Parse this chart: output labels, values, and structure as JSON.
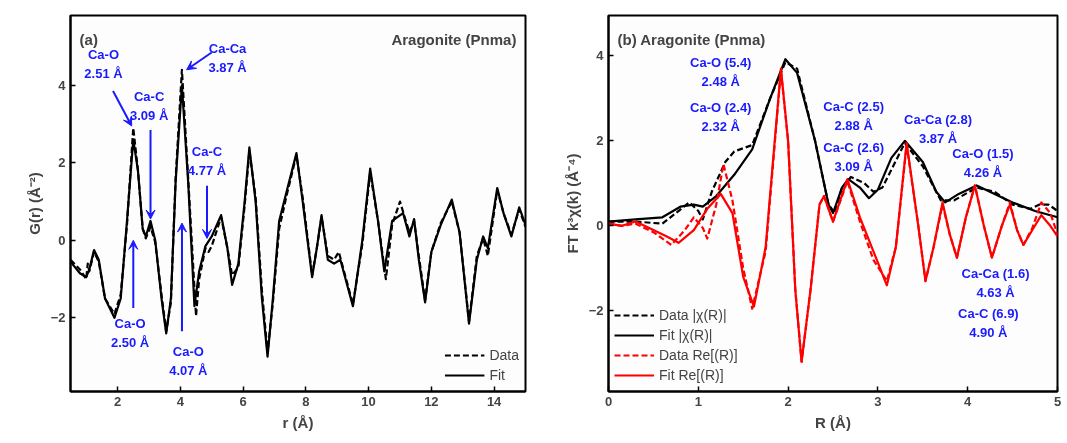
{
  "chart_data": [
    {
      "type": "line",
      "title": "(a)",
      "subtitle": "Aragonite (Pnma)",
      "xlabel": "r (Å)",
      "ylabel": "G(r) (Å⁻²)",
      "xlim": [
        0.5,
        15
      ],
      "ylim": [
        -3.9,
        5.8
      ],
      "xticks": [
        2,
        4,
        6,
        8,
        10,
        12,
        14
      ],
      "yticks": [
        -2,
        0,
        2,
        4
      ],
      "grid": false,
      "legend": "bottom right",
      "series": [
        {
          "name": "Data",
          "color": "#000000",
          "line_style": "dashed",
          "x": [
            0.5,
            0.8,
            1.0,
            1.05,
            1.1,
            1.25,
            1.4,
            1.6,
            1.9,
            2.1,
            2.3,
            2.5,
            2.65,
            2.8,
            2.9,
            3.05,
            3.2,
            3.4,
            3.55,
            3.7,
            3.85,
            4.05,
            4.25,
            4.5,
            4.6,
            4.8,
            4.9,
            5.0,
            5.3,
            5.5,
            5.65,
            5.85,
            6.05,
            6.2,
            6.4,
            6.6,
            6.78,
            6.95,
            7.15,
            7.4,
            7.7,
            7.9,
            8.2,
            8.35,
            8.5,
            8.7,
            8.9,
            9.05,
            9.15,
            9.5,
            9.8,
            10.05,
            10.3,
            10.55,
            10.75,
            11.0,
            11.3,
            11.45,
            11.6,
            11.8,
            12.0,
            12.3,
            12.65,
            12.9,
            13.2,
            13.45,
            13.65,
            13.8,
            14.1,
            14.3,
            14.55,
            14.8,
            15.0
          ],
          "values": [
            -0.5,
            -0.75,
            -1.0,
            -0.6,
            -0.8,
            -0.3,
            -0.55,
            -1.5,
            -1.9,
            -1.4,
            0.4,
            2.9,
            1.8,
            0.3,
            0.05,
            0.35,
            -0.05,
            -1.4,
            -2.35,
            -1.6,
            1.6,
            4.4,
            1.6,
            -1.95,
            -1.0,
            -0.2,
            -0.3,
            -0.15,
            0.6,
            -0.2,
            -0.9,
            -0.7,
            0.9,
            2.3,
            1.1,
            -1.3,
            -2.9,
            -1.6,
            0.3,
            1.2,
            2.2,
            1.1,
            -0.9,
            -0.2,
            0.6,
            -0.4,
            -0.5,
            -0.3,
            -0.6,
            -1.65,
            -0.1,
            1.75,
            0.5,
            -1.0,
            0.4,
            1.0,
            0.2,
            0.5,
            -0.4,
            -1.55,
            -0.3,
            0.45,
            1.0,
            0.2,
            -2.1,
            -0.4,
            0.05,
            -0.4,
            1.3,
            0.7,
            0.15,
            0.8,
            0.35
          ]
        },
        {
          "name": "Fit",
          "color": "#000000",
          "line_style": "solid",
          "x": [
            0.5,
            0.8,
            1.0,
            1.1,
            1.25,
            1.4,
            1.6,
            1.9,
            2.1,
            2.3,
            2.5,
            2.65,
            2.8,
            2.9,
            3.05,
            3.2,
            3.4,
            3.55,
            3.7,
            3.85,
            4.05,
            4.25,
            4.45,
            4.6,
            4.8,
            5.0,
            5.3,
            5.5,
            5.65,
            5.85,
            6.05,
            6.2,
            6.4,
            6.6,
            6.78,
            6.95,
            7.15,
            7.4,
            7.7,
            7.9,
            8.2,
            8.35,
            8.5,
            8.7,
            8.9,
            9.1,
            9.5,
            9.8,
            10.05,
            10.3,
            10.5,
            10.75,
            11.1,
            11.3,
            11.45,
            11.6,
            11.8,
            12.0,
            12.3,
            12.65,
            12.9,
            13.2,
            13.45,
            13.65,
            13.8,
            14.1,
            14.3,
            14.55,
            14.8,
            15.0
          ],
          "values": [
            -0.55,
            -0.85,
            -0.95,
            -0.75,
            -0.25,
            -0.5,
            -1.5,
            -2.0,
            -1.5,
            0.5,
            2.6,
            1.8,
            0.3,
            0.1,
            0.5,
            0.0,
            -1.5,
            -2.4,
            -1.5,
            1.5,
            4.0,
            1.5,
            -1.7,
            -0.8,
            -0.15,
            0.1,
            0.65,
            -0.2,
            -1.15,
            -0.6,
            1.0,
            2.4,
            1.0,
            -1.5,
            -3.0,
            -1.5,
            0.5,
            1.3,
            2.25,
            1.0,
            -0.95,
            -0.2,
            0.65,
            -0.5,
            -0.6,
            -0.5,
            -1.7,
            0.0,
            1.85,
            0.5,
            -0.8,
            0.5,
            0.7,
            0.1,
            0.55,
            -0.5,
            -1.6,
            -0.3,
            0.4,
            1.05,
            0.2,
            -2.15,
            -0.5,
            0.1,
            -0.2,
            1.35,
            0.7,
            0.1,
            0.85,
            0.4
          ]
        }
      ],
      "annotations": [
        {
          "text": "Ca-O\n2.51 Å",
          "x": 2.45,
          "y": 2.95
        },
        {
          "text": "Ca-C\n3.09 Å",
          "x": 3.05,
          "y": 0.55
        },
        {
          "text": "Ca-Ca\n3.87 Å",
          "x": 4.2,
          "y": 4.4
        },
        {
          "text": "Ca-C\n4.77 Å",
          "x": 4.85,
          "y": 0.05
        },
        "Ca-O\n2.50 Å",
        "Ca-O\n4.07 Å"
      ]
    },
    {
      "type": "line",
      "title": "(b) Aragonite (Pnma)",
      "xlabel": "R (Å)",
      "ylabel": "FT k³χ(k) (Å⁻⁴)",
      "xlim": [
        0,
        5
      ],
      "ylim": [
        -3.9,
        4.95
      ],
      "xticks": [
        0,
        1,
        2,
        3,
        4,
        5
      ],
      "yticks": [
        -2,
        0,
        2,
        4
      ],
      "grid": false,
      "legend": "bottom left",
      "series": [
        {
          "name": "Data |χ(R)|",
          "color": "#000000",
          "line_style": "dashed",
          "x": [
            0,
            0.3,
            0.6,
            0.75,
            0.9,
            1.0,
            1.05,
            1.15,
            1.3,
            1.4,
            1.6,
            1.8,
            1.97,
            2.1,
            2.3,
            2.45,
            2.52,
            2.6,
            2.7,
            2.85,
            2.95,
            3.05,
            3.3,
            3.5,
            3.7,
            3.85,
            4.1,
            4.3,
            4.5,
            4.7,
            4.8,
            4.9,
            5.0
          ],
          "values": [
            0.1,
            0.1,
            0.05,
            0.3,
            0.55,
            0.35,
            0.15,
            0.8,
            1.5,
            1.75,
            1.9,
            3.0,
            3.85,
            3.7,
            2.0,
            0.5,
            0.3,
            0.9,
            1.15,
            1.0,
            0.8,
            0.9,
            1.95,
            1.4,
            0.6,
            0.6,
            0.9,
            0.8,
            0.5,
            0.4,
            0.5,
            0.5,
            0.35
          ]
        },
        {
          "name": "Fit |χ(R)|",
          "color": "#000000",
          "line_style": "solid",
          "x": [
            0,
            0.3,
            0.6,
            0.8,
            0.95,
            1.05,
            1.2,
            1.4,
            1.6,
            1.8,
            1.97,
            2.1,
            2.3,
            2.45,
            2.5,
            2.6,
            2.67,
            2.8,
            2.9,
            3.0,
            3.15,
            3.3,
            3.5,
            3.65,
            3.75,
            3.9,
            4.1,
            4.3,
            4.5,
            4.75,
            5.0
          ],
          "values": [
            0.1,
            0.15,
            0.2,
            0.45,
            0.5,
            0.45,
            0.7,
            1.2,
            1.8,
            3.0,
            3.92,
            3.6,
            2.0,
            0.5,
            0.3,
            0.9,
            1.1,
            0.9,
            0.65,
            0.85,
            1.6,
            2.0,
            1.5,
            0.8,
            0.55,
            0.75,
            0.95,
            0.75,
            0.55,
            0.35,
            0.2
          ]
        },
        {
          "name": "Data Re[(R)]",
          "color": "#ff0000",
          "line_style": "dashed",
          "x": [
            0,
            0.15,
            0.3,
            0.5,
            0.7,
            0.85,
            0.95,
            1.05,
            1.1,
            1.2,
            1.28,
            1.38,
            1.5,
            1.6,
            1.75,
            1.92,
            2.0,
            2.08,
            2.15,
            2.25,
            2.35,
            2.4,
            2.5,
            2.66,
            2.8,
            2.95,
            3.1,
            3.2,
            3.32,
            3.45,
            3.53,
            3.62,
            3.72,
            3.8,
            3.88,
            3.98,
            4.08,
            4.18,
            4.27,
            4.38,
            4.47,
            4.55,
            4.62,
            4.72,
            4.82,
            4.92,
            5.0
          ],
          "values": [
            0.05,
            0.0,
            0.05,
            -0.15,
            -0.45,
            -0.1,
            0.2,
            -0.05,
            -0.3,
            0.5,
            1.45,
            0.6,
            -1.0,
            -1.95,
            -0.6,
            3.65,
            2.0,
            -1.5,
            -3.2,
            -1.5,
            0.5,
            0.7,
            0.1,
            1.05,
            0.1,
            -0.8,
            -1.3,
            -0.5,
            1.9,
            0.0,
            -1.3,
            -0.5,
            0.5,
            -0.2,
            -0.75,
            0.2,
            0.95,
            0.0,
            -0.75,
            0.0,
            0.55,
            -0.1,
            -0.45,
            -0.05,
            0.55,
            0.3,
            -0.2
          ]
        },
        {
          "name": "Fit Re[(R)]",
          "color": "#ff0000",
          "line_style": "solid",
          "x": [
            0,
            0.15,
            0.3,
            0.5,
            0.65,
            0.78,
            0.95,
            1.1,
            1.25,
            1.38,
            1.5,
            1.62,
            1.75,
            1.92,
            2.0,
            2.08,
            2.15,
            2.25,
            2.35,
            2.4,
            2.5,
            2.66,
            2.8,
            2.95,
            3.1,
            3.2,
            3.32,
            3.45,
            3.53,
            3.62,
            3.72,
            3.8,
            3.88,
            3.98,
            4.08,
            4.18,
            4.27,
            4.38,
            4.47,
            4.55,
            4.62,
            4.72,
            4.82,
            4.92,
            5.0
          ],
          "values": [
            0.05,
            0.0,
            0.1,
            -0.1,
            -0.25,
            -0.4,
            -0.1,
            0.4,
            0.75,
            0.3,
            -1.2,
            -1.9,
            -0.5,
            3.7,
            2.0,
            -1.5,
            -3.2,
            -1.5,
            0.5,
            0.7,
            0.1,
            1.1,
            0.2,
            -0.6,
            -1.4,
            -0.5,
            1.95,
            0.0,
            -1.3,
            -0.5,
            0.55,
            -0.2,
            -0.75,
            0.2,
            0.95,
            0.0,
            -0.75,
            0.0,
            0.5,
            -0.1,
            -0.45,
            -0.1,
            0.25,
            0.0,
            -0.25
          ]
        }
      ],
      "annotations": [
        "Ca-O (5.4)\n2.48 Å",
        "Ca-O (2.4)\n2.32 Å",
        "Ca-C (2.5)\n2.88 Å",
        "Ca-C (2.6)\n3.09 Å",
        "Ca-Ca (2.8)\n3.87 Å",
        "Ca-O (1.5)\n4.26 Å",
        "Ca-Ca (1.6)\n4.63 Å",
        "Ca-C (6.9)\n4.90 Å"
      ]
    }
  ]
}
